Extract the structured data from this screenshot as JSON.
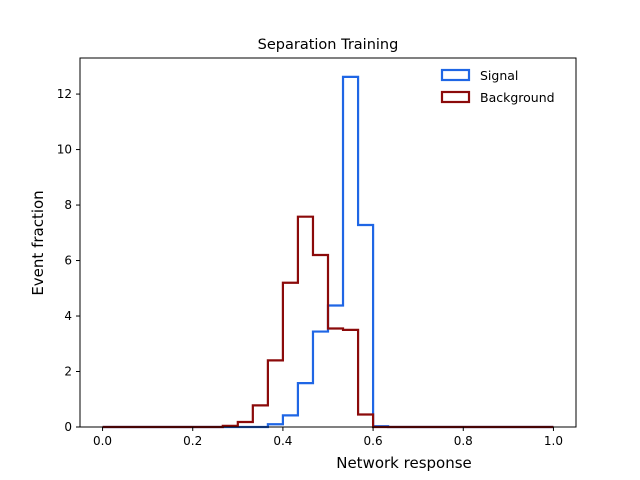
{
  "chart_data": {
    "type": "histogram-step",
    "title": "Separation Training",
    "xlabel": "Network response",
    "ylabel": "Event fraction",
    "xlim": [
      -0.05,
      1.05
    ],
    "ylim": [
      0,
      13.3
    ],
    "grid": false,
    "legend_position": "top-right",
    "x_ticks": [
      {
        "value": 0.0,
        "label": "0.0"
      },
      {
        "value": 0.2,
        "label": "0.2"
      },
      {
        "value": 0.4,
        "label": "0.4"
      },
      {
        "value": 0.6,
        "label": "0.6"
      },
      {
        "value": 0.8,
        "label": "0.8"
      },
      {
        "value": 1.0,
        "label": "1.0"
      }
    ],
    "y_ticks": [
      {
        "value": 0,
        "label": "0"
      },
      {
        "value": 2,
        "label": "2"
      },
      {
        "value": 4,
        "label": "4"
      },
      {
        "value": 6,
        "label": "6"
      },
      {
        "value": 8,
        "label": "8"
      },
      {
        "value": 10,
        "label": "10"
      },
      {
        "value": 12,
        "label": "12"
      }
    ],
    "bin_edges": [
      0.0,
      0.0333,
      0.0667,
      0.1,
      0.1333,
      0.1667,
      0.2,
      0.2333,
      0.2667,
      0.3,
      0.3333,
      0.3667,
      0.4,
      0.4333,
      0.4667,
      0.5,
      0.5333,
      0.5667,
      0.6,
      0.6333,
      0.6667,
      0.7,
      0.7333,
      0.7667,
      0.8,
      0.8333,
      0.8667,
      0.9,
      0.9333,
      0.9667,
      1.0
    ],
    "series": [
      {
        "name": "Signal",
        "color": "#1f66e5",
        "values": [
          0,
          0,
          0,
          0,
          0,
          0,
          0,
          0,
          0,
          0,
          0,
          0.1,
          0.42,
          1.58,
          3.44,
          4.38,
          12.62,
          7.28,
          0.03,
          0,
          0,
          0,
          0,
          0,
          0,
          0,
          0,
          0,
          0,
          0
        ]
      },
      {
        "name": "Background",
        "color": "#8b0a0a",
        "values": [
          0,
          0,
          0,
          0,
          0,
          0,
          0,
          0,
          0.04,
          0.18,
          0.78,
          2.4,
          5.2,
          7.58,
          6.2,
          3.55,
          3.5,
          0.45,
          0,
          0,
          0,
          0,
          0,
          0,
          0,
          0,
          0,
          0,
          0,
          0
        ]
      }
    ]
  }
}
